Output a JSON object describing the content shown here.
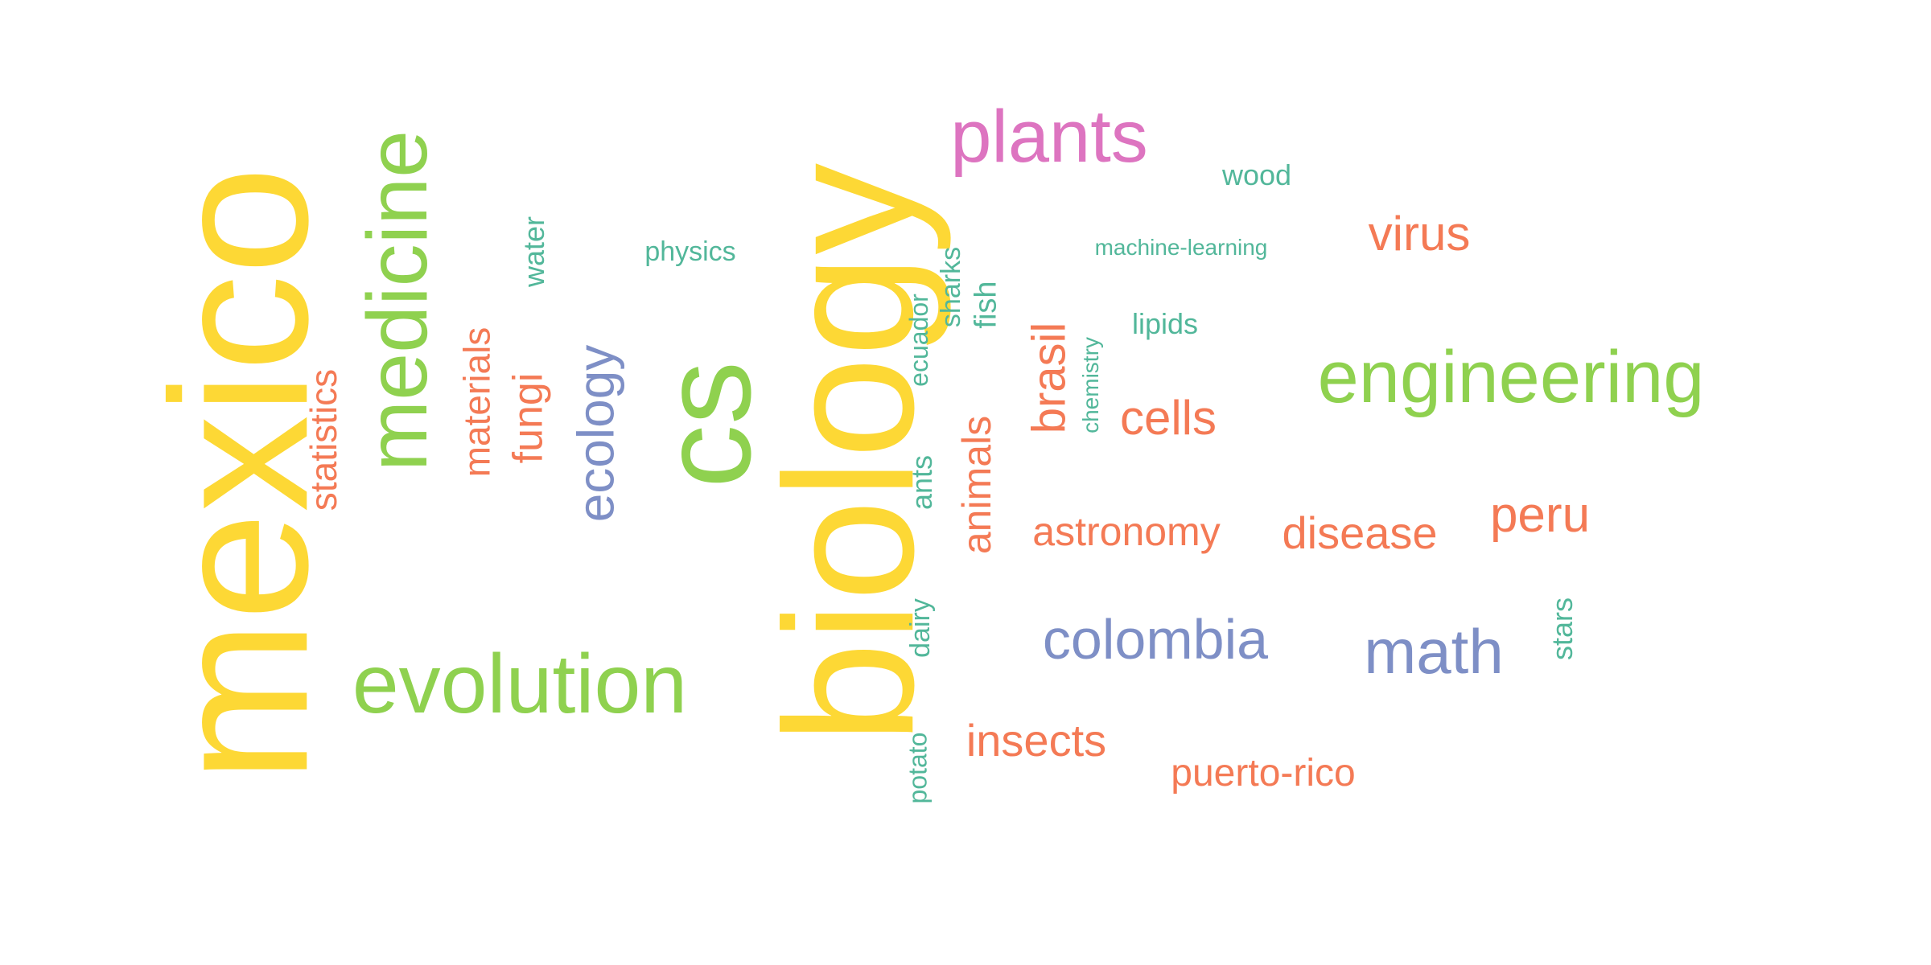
{
  "palette": {
    "yellow": "#FDD835",
    "green": "#8FD14F",
    "orange": "#F47A55",
    "blue": "#7E8FC6",
    "teal": "#52B79A",
    "pink": "#DD74C0"
  },
  "words": [
    {
      "text": "mexico",
      "color": "yellow",
      "vertical": true
    },
    {
      "text": "biology",
      "color": "yellow",
      "vertical": true
    },
    {
      "text": "cs",
      "color": "green",
      "vertical": true
    },
    {
      "text": "medicine",
      "color": "green",
      "vertical": true
    },
    {
      "text": "evolution",
      "color": "green",
      "vertical": false
    },
    {
      "text": "engineering",
      "color": "green",
      "vertical": false
    },
    {
      "text": "plants",
      "color": "pink",
      "vertical": false
    },
    {
      "text": "ecology",
      "color": "blue",
      "vertical": true
    },
    {
      "text": "colombia",
      "color": "blue",
      "vertical": false
    },
    {
      "text": "math",
      "color": "blue",
      "vertical": false
    },
    {
      "text": "statistics",
      "color": "orange",
      "vertical": true
    },
    {
      "text": "materials",
      "color": "orange",
      "vertical": true
    },
    {
      "text": "fungi",
      "color": "orange",
      "vertical": true
    },
    {
      "text": "animals",
      "color": "orange",
      "vertical": true
    },
    {
      "text": "brasil",
      "color": "orange",
      "vertical": true
    },
    {
      "text": "cells",
      "color": "orange",
      "vertical": false
    },
    {
      "text": "astronomy",
      "color": "orange",
      "vertical": false
    },
    {
      "text": "disease",
      "color": "orange",
      "vertical": false
    },
    {
      "text": "peru",
      "color": "orange",
      "vertical": false
    },
    {
      "text": "virus",
      "color": "orange",
      "vertical": false
    },
    {
      "text": "insects",
      "color": "orange",
      "vertical": false
    },
    {
      "text": "puerto-rico",
      "color": "orange",
      "vertical": false
    },
    {
      "text": "water",
      "color": "teal",
      "vertical": true
    },
    {
      "text": "physics",
      "color": "teal",
      "vertical": false
    },
    {
      "text": "ecuador",
      "color": "teal",
      "vertical": true
    },
    {
      "text": "sharks",
      "color": "teal",
      "vertical": true
    },
    {
      "text": "fish",
      "color": "teal",
      "vertical": true
    },
    {
      "text": "chemistry",
      "color": "teal",
      "vertical": true
    },
    {
      "text": "ants",
      "color": "teal",
      "vertical": true
    },
    {
      "text": "dairy",
      "color": "teal",
      "vertical": true
    },
    {
      "text": "potato",
      "color": "teal",
      "vertical": true
    },
    {
      "text": "stars",
      "color": "teal",
      "vertical": true
    },
    {
      "text": "wood",
      "color": "teal",
      "vertical": false
    },
    {
      "text": "machine-learning",
      "color": "teal",
      "vertical": false
    },
    {
      "text": "lipids",
      "color": "teal",
      "vertical": false
    }
  ]
}
